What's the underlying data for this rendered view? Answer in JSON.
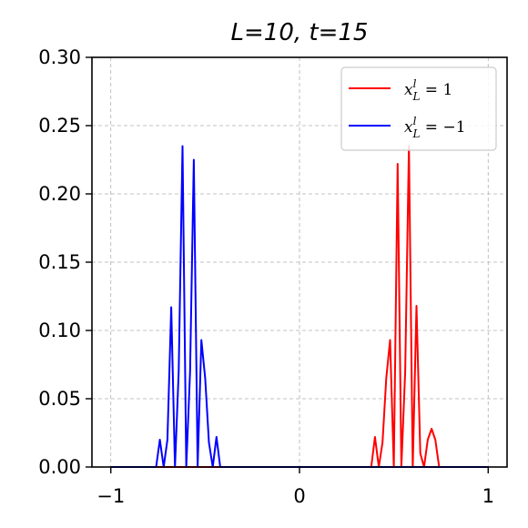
{
  "chart_data": {
    "type": "line",
    "title": "L=10, t=15",
    "xlabel": "",
    "ylabel": "",
    "xlim": [
      -1.1,
      1.1
    ],
    "ylim": [
      0,
      0.3
    ],
    "grid": true,
    "legend_position": "top-right",
    "x_ticks": [
      -1,
      0,
      1
    ],
    "x_tick_labels": [
      "−1",
      "0",
      "1"
    ],
    "y_ticks": [
      0,
      0.05,
      0.1,
      0.15,
      0.2,
      0.25,
      0.3
    ],
    "y_tick_labels": [
      "0.00",
      "0.05",
      "0.10",
      "0.15",
      "0.20",
      "0.25",
      "0.30"
    ],
    "series": [
      {
        "name": "x_L^l = 1",
        "color": "#ff0000",
        "x": [
          -1,
          0.36,
          0.38,
          0.4,
          0.42,
          0.44,
          0.46,
          0.48,
          0.5,
          0.52,
          0.54,
          0.56,
          0.58,
          0.6,
          0.62,
          0.64,
          0.66,
          0.68,
          0.7,
          0.72,
          0.74,
          0.76,
          1.0
        ],
        "values": [
          0,
          0,
          0,
          0.022,
          0,
          0.018,
          0.065,
          0.093,
          0,
          0.222,
          0,
          0.07,
          0.235,
          0,
          0.118,
          0.01,
          0,
          0.02,
          0.028,
          0.02,
          0,
          0,
          0
        ]
      },
      {
        "name": "x_L^l = −1",
        "color": "#0000ff",
        "x": [
          -1,
          -0.76,
          -0.74,
          -0.72,
          -0.7,
          -0.68,
          -0.66,
          -0.64,
          -0.62,
          -0.6,
          -0.58,
          -0.56,
          -0.54,
          -0.52,
          -0.5,
          -0.48,
          -0.46,
          -0.44,
          -0.42,
          -0.4,
          -0.38,
          1.0
        ],
        "values": [
          0,
          0,
          0.02,
          0,
          0.02,
          0.117,
          0,
          0.07,
          0.235,
          0,
          0.07,
          0.225,
          0,
          0.093,
          0.065,
          0.018,
          0,
          0.022,
          0,
          0,
          0,
          0
        ]
      }
    ]
  },
  "legend": {
    "entries": [
      {
        "prefix": "x",
        "sub": "L",
        "sup": "l",
        "rest": " = 1"
      },
      {
        "prefix": "x",
        "sub": "L",
        "sup": "l",
        "rest": " = −1"
      }
    ]
  }
}
